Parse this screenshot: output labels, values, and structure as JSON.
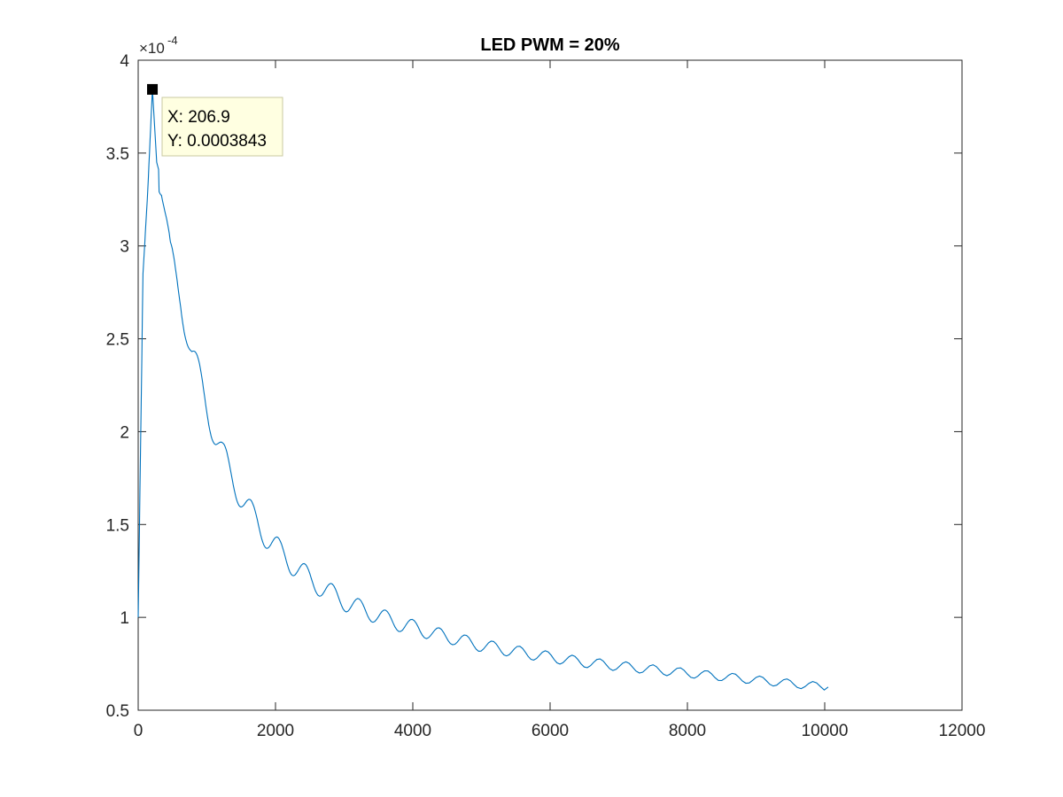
{
  "chart_data": {
    "type": "line",
    "title": "LED PWM = 20%",
    "xlabel": "",
    "ylabel": "",
    "xlim": [
      0,
      12000
    ],
    "ylim": [
      0.5,
      4
    ],
    "y_scale_exponent": "-4",
    "x_ticks": [
      "0",
      "2000",
      "4000",
      "6000",
      "8000",
      "10000",
      "12000"
    ],
    "y_ticks": [
      "0.5",
      "1",
      "1.5",
      "2",
      "2.5",
      "3",
      "3.5",
      "4"
    ],
    "grid": false,
    "line_color": "#0072BD",
    "series": [
      {
        "x": [
          0,
          70,
          140,
          207,
          270,
          340,
          400,
          470,
          540,
          620,
          700,
          780,
          860,
          950,
          1040,
          1130,
          1230,
          1330,
          1440,
          1550,
          1670,
          1800,
          1930,
          2070,
          2210,
          2360,
          2520,
          2680,
          2850,
          3030,
          3220,
          3420,
          3630,
          3850,
          4080,
          4320,
          4580,
          4850,
          5140,
          5440,
          5760,
          6100,
          6450,
          6820,
          7200,
          7600,
          8000,
          8400,
          8800,
          9200,
          9600,
          10050
        ],
        "y": [
          1.0,
          2.85,
          3.3,
          3.843,
          3.45,
          3.35,
          3.15,
          2.92,
          2.82,
          2.72,
          2.58,
          2.43,
          2.32,
          2.2,
          2.09,
          1.98,
          1.87,
          1.78,
          1.7,
          1.62,
          1.54,
          1.47,
          1.41,
          1.35,
          1.3,
          1.25,
          1.2,
          1.16,
          1.12,
          1.08,
          1.05,
          1.02,
          0.99,
          0.96,
          0.94,
          0.91,
          0.89,
          0.86,
          0.84,
          0.82,
          0.8,
          0.78,
          0.76,
          0.745,
          0.73,
          0.715,
          0.7,
          0.685,
          0.67,
          0.655,
          0.64,
          0.625
        ]
      }
    ],
    "datatip": {
      "x_text": "X: 206.9",
      "y_text": "Y: 0.0003843",
      "x": 206.9,
      "y": 3.843
    }
  }
}
